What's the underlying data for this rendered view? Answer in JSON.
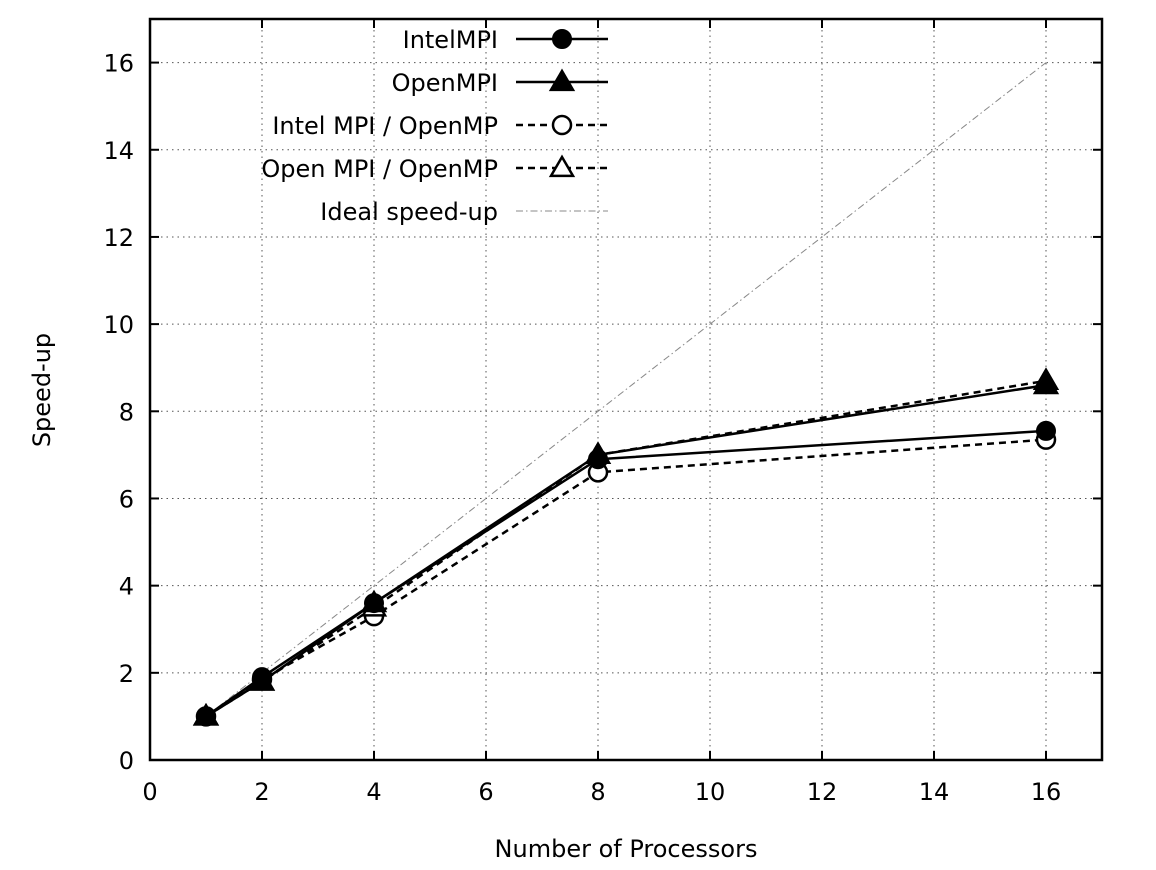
{
  "chart_data": {
    "type": "line",
    "title": "",
    "xlabel": "Number of Processors",
    "ylabel": "Speed-up",
    "xlim": [
      0,
      17
    ],
    "ylim": [
      0,
      17
    ],
    "xticks": [
      0,
      2,
      4,
      6,
      8,
      10,
      12,
      14,
      16
    ],
    "yticks": [
      0,
      2,
      4,
      6,
      8,
      10,
      12,
      14,
      16
    ],
    "grid": true,
    "legend_position": "top-center",
    "series": [
      {
        "name": "IntelMPI",
        "x": [
          1,
          2,
          4,
          8,
          16
        ],
        "values": [
          1.0,
          1.9,
          3.6,
          6.9,
          7.55
        ],
        "line_style": "solid",
        "marker": "filled-circle",
        "color": "#000000"
      },
      {
        "name": "OpenMPI",
        "x": [
          1,
          2,
          4,
          8,
          16
        ],
        "values": [
          1.0,
          1.8,
          3.6,
          7.0,
          8.6
        ],
        "line_style": "solid",
        "marker": "filled-triangle",
        "color": "#000000"
      },
      {
        "name": "Intel MPI / OpenMP",
        "x": [
          1,
          2,
          4,
          8,
          16
        ],
        "values": [
          1.0,
          1.85,
          3.3,
          6.6,
          7.35
        ],
        "line_style": "dashed",
        "marker": "open-circle",
        "color": "#000000"
      },
      {
        "name": "Open MPI / OpenMP",
        "x": [
          1,
          2,
          4,
          8,
          16
        ],
        "values": [
          1.0,
          1.8,
          3.5,
          7.0,
          8.7
        ],
        "line_style": "dashed",
        "marker": "open-triangle",
        "color": "#000000"
      },
      {
        "name": "Ideal speed-up",
        "x": [
          1,
          16
        ],
        "values": [
          1,
          16
        ],
        "line_style": "dash-dot",
        "marker": "none",
        "color": "#888888"
      }
    ]
  }
}
